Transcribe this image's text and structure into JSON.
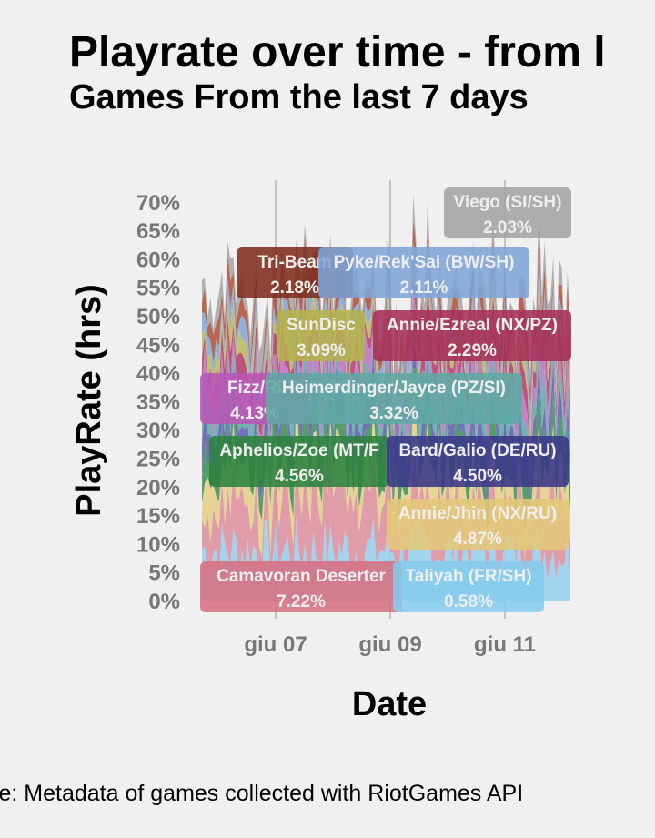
{
  "title": "Playrate over time - from l",
  "subtitle": "Games From the last 7 days",
  "caption": "ce: Metadata of games collected with RiotGames API",
  "chart_data": {
    "type": "area",
    "xlabel": "Date",
    "ylabel": "PlayRate (hrs)",
    "ylim": [
      0,
      72
    ],
    "y_ticks": [
      "0%",
      "5%",
      "10%",
      "15%",
      "20%",
      "25%",
      "30%",
      "35%",
      "40%",
      "45%",
      "50%",
      "55%",
      "60%",
      "65%",
      "70%"
    ],
    "x_ticks": [
      "giu 07",
      "giu 09",
      "giu 11"
    ],
    "grid": "vertical",
    "stack_bands": [
      {
        "color": "#93cfee",
        "mean": 9
      },
      {
        "color": "#dd8e9c",
        "mean": 9
      },
      {
        "color": "#e4cf86",
        "mean": 6
      },
      {
        "color": "#3c8e53",
        "mean": 5
      },
      {
        "color": "#5a5ab0",
        "mean": 4
      },
      {
        "color": "#57aaa4",
        "mean": 4
      },
      {
        "color": "#c06fc0",
        "mean": 4
      },
      {
        "color": "#b13a67",
        "mean": 3
      },
      {
        "color": "#b9b65c",
        "mean": 3
      },
      {
        "color": "#7ea6d8",
        "mean": 3
      },
      {
        "color": "#b04c35",
        "mean": 3
      },
      {
        "color": "#a5a5a5",
        "mean": 3
      }
    ],
    "labels": [
      {
        "name": "Viego (SI/SH)",
        "value": "2.03%",
        "color": "#a3a3a3"
      },
      {
        "name": "Tri-Beam",
        "value": "2.18%",
        "color": "#7e2c1c"
      },
      {
        "name": "Pyke/Rek'Sai (BW/SH)",
        "value": "2.11%",
        "color": "#7ea4d6"
      },
      {
        "name": "SunDisc",
        "value": "3.09%",
        "color": "#b5b24e"
      },
      {
        "name": "Annie/Ezreal (NX/PZ)",
        "value": "2.29%",
        "color": "#a53057"
      },
      {
        "name": "Fizz/Ri",
        "value": "4.13%",
        "color": "#b757b5"
      },
      {
        "name": "Heimerdinger/Jayce (PZ/SI)",
        "value": "3.32%",
        "color": "#5fa9a4"
      },
      {
        "name": "Aphelios/Zoe (MT/F",
        "value": "4.56%",
        "color": "#2e8240"
      },
      {
        "name": "Bard/Galio (DE/RU)",
        "value": "4.50%",
        "color": "#3a3888"
      },
      {
        "name": "Annie/Jhin (NX/RU)",
        "value": "4.87%",
        "color": "#e3c878"
      },
      {
        "name": "Camavoran Deserter",
        "value": "7.22%",
        "color": "#d7707f"
      },
      {
        "name": "Taliyah (FR/SH)",
        "value": "0.58%",
        "color": "#85ccee"
      }
    ]
  }
}
